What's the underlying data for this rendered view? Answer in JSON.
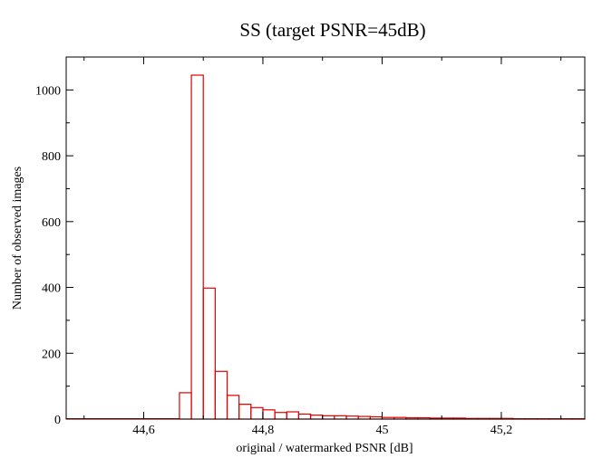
{
  "chart_data": {
    "type": "bar",
    "title": "SS (target PSNR=45dB)",
    "xlabel": "original / watermarked PSNR [dB]",
    "ylabel": "Number of observed images",
    "xlim": [
      44.47,
      45.34
    ],
    "ylim": [
      0,
      1100
    ],
    "x_ticks": [
      44.6,
      44.8,
      45,
      45.2
    ],
    "x_tick_labels": [
      "44,6",
      "44,8",
      "45",
      "45,2"
    ],
    "y_ticks": [
      0,
      200,
      400,
      600,
      800,
      1000
    ],
    "y_tick_labels": [
      "0",
      "200",
      "400",
      "600",
      "800",
      "1000"
    ],
    "bin_width": 0.02,
    "bins": [
      {
        "x0": 44.66,
        "value": 80
      },
      {
        "x0": 44.68,
        "value": 1045
      },
      {
        "x0": 44.7,
        "value": 398
      },
      {
        "x0": 44.72,
        "value": 145
      },
      {
        "x0": 44.74,
        "value": 72
      },
      {
        "x0": 44.76,
        "value": 45
      },
      {
        "x0": 44.78,
        "value": 35
      },
      {
        "x0": 44.8,
        "value": 28
      },
      {
        "x0": 44.82,
        "value": 20
      },
      {
        "x0": 44.84,
        "value": 22
      },
      {
        "x0": 44.86,
        "value": 15
      },
      {
        "x0": 44.88,
        "value": 12
      },
      {
        "x0": 44.9,
        "value": 10
      },
      {
        "x0": 44.92,
        "value": 10
      },
      {
        "x0": 44.94,
        "value": 9
      },
      {
        "x0": 44.96,
        "value": 8
      },
      {
        "x0": 44.98,
        "value": 7
      },
      {
        "x0": 45.0,
        "value": 5
      },
      {
        "x0": 45.02,
        "value": 5
      },
      {
        "x0": 45.04,
        "value": 4
      },
      {
        "x0": 45.06,
        "value": 4
      },
      {
        "x0": 45.08,
        "value": 3
      },
      {
        "x0": 45.1,
        "value": 3
      },
      {
        "x0": 45.12,
        "value": 3
      },
      {
        "x0": 45.14,
        "value": 2
      },
      {
        "x0": 45.16,
        "value": 2
      },
      {
        "x0": 45.18,
        "value": 2
      },
      {
        "x0": 45.2,
        "value": 2
      },
      {
        "x0": 45.22,
        "value": 1
      },
      {
        "x0": 45.24,
        "value": 1
      },
      {
        "x0": 45.26,
        "value": 1
      },
      {
        "x0": 45.28,
        "value": 1
      },
      {
        "x0": 45.3,
        "value": 1
      },
      {
        "x0": 45.32,
        "value": 1
      }
    ],
    "low_tail_value": 1,
    "series_color": "#e00000",
    "grid": false,
    "legend": "none"
  }
}
